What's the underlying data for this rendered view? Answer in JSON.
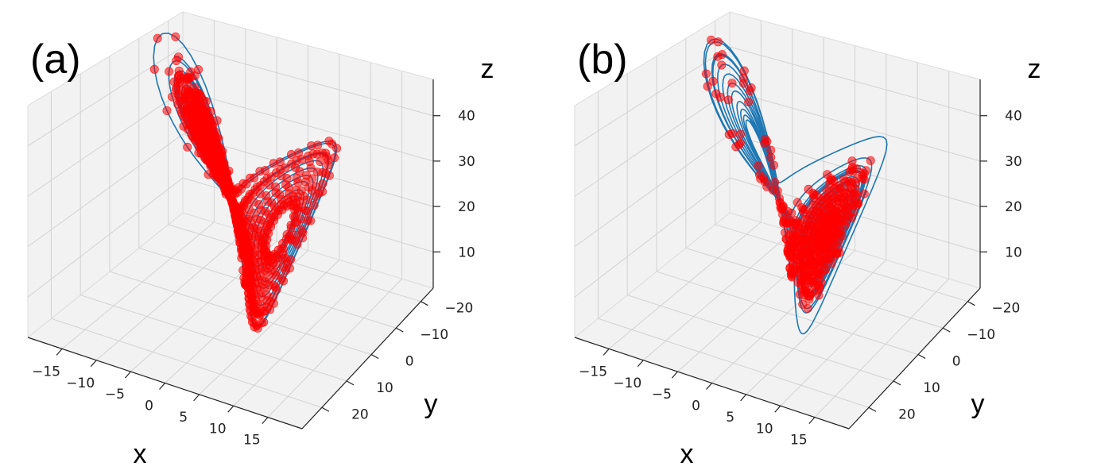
{
  "chart_data": [
    {
      "type": "scatter",
      "panel_label": "(a)",
      "xlabel": "x",
      "ylabel": "y",
      "zlabel": "z",
      "x_ticks": [
        -15,
        -10,
        -5,
        0,
        5,
        10,
        15
      ],
      "y_ticks": [
        -20,
        -10,
        0,
        10,
        20
      ],
      "z_ticks": [
        10,
        20,
        30,
        40
      ],
      "xlim": [
        -20,
        20
      ],
      "ylim": [
        -25,
        28
      ],
      "zlim": [
        2,
        48
      ],
      "grid": true,
      "series": [
        {
          "kind": "line",
          "color": "#1f77b4",
          "rho": 28,
          "sigma": 10,
          "beta": 2.667,
          "start": [
            1,
            1,
            1
          ],
          "steps": 3200,
          "dt": 0.01
        },
        {
          "kind": "markers",
          "color": "#ff0000",
          "opacity": 0.55,
          "rho": 28,
          "sigma": 10,
          "beta": 2.667,
          "start": [
            1,
            1,
            1
          ],
          "steps": 3200,
          "dt": 0.01,
          "every": 3
        }
      ]
    },
    {
      "type": "scatter",
      "panel_label": "(b)",
      "xlabel": "x",
      "ylabel": "y",
      "zlabel": "z",
      "x_ticks": [
        -15,
        -10,
        -5,
        0,
        5,
        10,
        15
      ],
      "y_ticks": [
        -20,
        -10,
        0,
        10,
        20
      ],
      "z_ticks": [
        10,
        20,
        30,
        40
      ],
      "xlim": [
        -20,
        20
      ],
      "ylim": [
        -25,
        28
      ],
      "zlim": [
        2,
        48
      ],
      "grid": true,
      "series": [
        {
          "kind": "line",
          "color": "#1f77b4",
          "rho": 28,
          "sigma": 10,
          "beta": 2.667,
          "start": [
            -1,
            -1,
            1
          ],
          "steps": 3200,
          "dt": 0.01
        },
        {
          "kind": "markers",
          "color": "#ff0000",
          "opacity": 0.55,
          "rho": 28,
          "sigma": 10,
          "beta": 2.667,
          "start": [
            -1,
            -1,
            1
          ],
          "steps": 2400,
          "dt": 0.01,
          "every": 5
        }
      ]
    }
  ]
}
